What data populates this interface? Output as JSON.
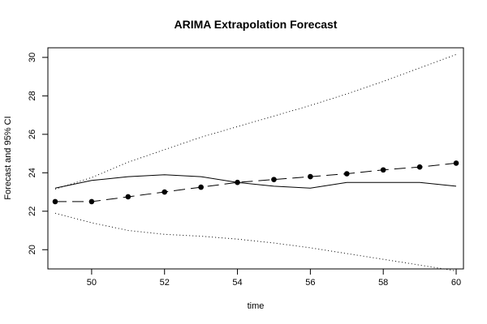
{
  "chart_data": {
    "type": "line",
    "title": "ARIMA Extrapolation Forecast",
    "xlabel": "time",
    "ylabel": "Forecast and 95% CI",
    "xlim": [
      48.8,
      60.2
    ],
    "ylim": [
      19.0,
      30.5
    ],
    "x_ticks": [
      50,
      52,
      54,
      56,
      58,
      60
    ],
    "y_ticks": [
      20,
      22,
      24,
      26,
      28,
      30
    ],
    "grid": false,
    "x": [
      49,
      50,
      51,
      52,
      53,
      54,
      55,
      56,
      57,
      58,
      59,
      60
    ],
    "series": [
      {
        "style": "solid",
        "values": [
          23.2,
          23.6,
          23.8,
          23.9,
          23.8,
          23.5,
          23.3,
          23.2,
          23.5,
          23.5,
          23.5,
          23.3
        ]
      },
      {
        "style": "dashed-points",
        "values": [
          22.5,
          22.5,
          22.75,
          23.0,
          23.25,
          23.5,
          23.65,
          23.8,
          23.95,
          24.15,
          24.3,
          24.5
        ]
      },
      {
        "style": "dotted",
        "values": [
          23.15,
          23.75,
          24.55,
          25.2,
          25.85,
          26.4,
          26.95,
          27.5,
          28.1,
          28.75,
          29.45,
          30.15
        ]
      },
      {
        "style": "dotted",
        "values": [
          21.9,
          21.4,
          21.0,
          20.8,
          20.7,
          20.55,
          20.35,
          20.1,
          19.8,
          19.5,
          19.2,
          18.9
        ]
      }
    ]
  }
}
